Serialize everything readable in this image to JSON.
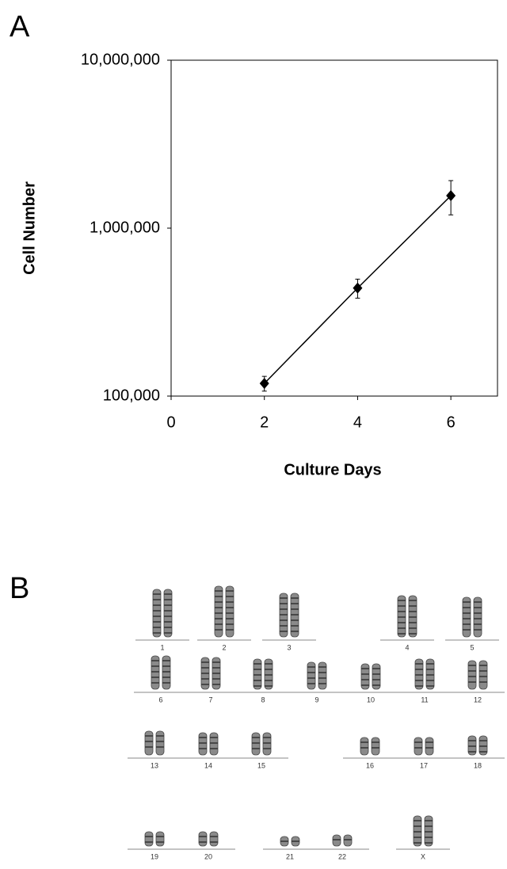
{
  "panel_labels": [
    "A",
    "B"
  ],
  "chart_data": {
    "type": "line",
    "xlabel": "Culture Days",
    "ylabel": "Cell Number",
    "x": [
      2,
      4,
      6
    ],
    "series": [
      {
        "color": "#000000",
        "values": [
          119000,
          440000,
          1560000
        ],
        "errors": [
          12000,
          57000,
          360000
        ]
      }
    ],
    "xlim": [
      0,
      7
    ],
    "xticks": [
      0,
      2,
      4,
      6
    ],
    "ylim": [
      100000,
      10000000
    ],
    "yscale": "log",
    "yticks": [
      {
        "value": 100000,
        "label": "100,000"
      },
      {
        "value": 1000000,
        "label": "1,000,000"
      },
      {
        "value": 10000000,
        "label": "10,000,000"
      }
    ],
    "grid": false
  },
  "karyotype": {
    "chromosomes": [
      "1",
      "2",
      "3",
      "4",
      "5",
      "6",
      "7",
      "8",
      "9",
      "10",
      "11",
      "12",
      "13",
      "14",
      "15",
      "16",
      "17",
      "18",
      "19",
      "20",
      "21",
      "22",
      "X"
    ]
  }
}
